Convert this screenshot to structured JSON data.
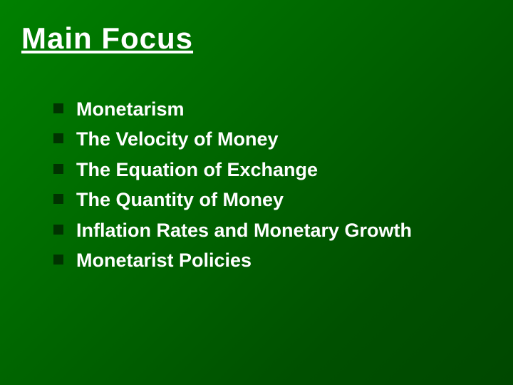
{
  "slide": {
    "title": "Main Focus",
    "background_gradient_start": "#008000",
    "background_gradient_end": "#004800",
    "title_color": "#ffffff",
    "title_fontsize": 42,
    "bullet_color": "#003300",
    "text_color": "#ffffff",
    "bullet_fontsize": 27,
    "bullets": [
      "Monetarism",
      "The  Velocity of Money",
      "The Equation of Exchange",
      "The Quantity of Money",
      "Inflation Rates and Monetary Growth",
      "Monetarist Policies"
    ]
  }
}
